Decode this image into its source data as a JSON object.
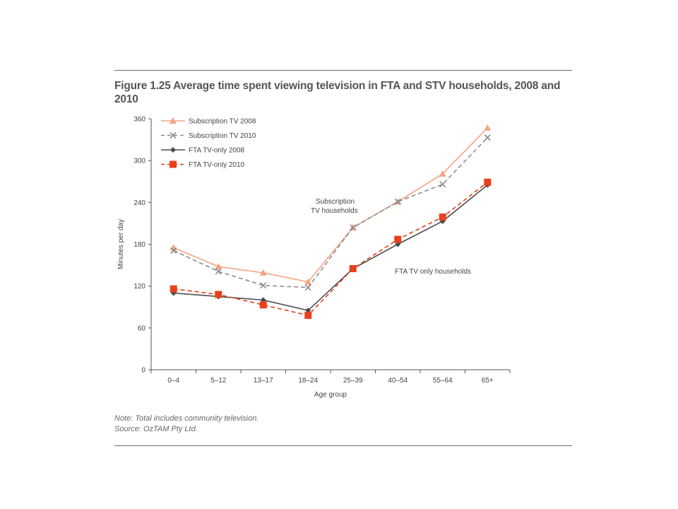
{
  "figure": {
    "title": "Figure 1.25 Average time spent viewing television in FTA and STV households, 2008 and 2010",
    "note": "Note: Total includes community television.",
    "source": "Source: OzTAM Pty Ltd."
  },
  "chart_data": {
    "type": "line",
    "title": "Figure 1.25 Average time spent viewing television in FTA and STV households, 2008 and 2010",
    "xlabel": "Age group",
    "ylabel": "Minutes per day",
    "ylim": [
      0,
      360
    ],
    "yticks": [
      0,
      60,
      120,
      180,
      240,
      300,
      360
    ],
    "grid": false,
    "legend_position": "top-left",
    "categories": [
      "0–4",
      "5–12",
      "13–17",
      "18–24",
      "25–39",
      "40–54",
      "55–64",
      "65+"
    ],
    "series": [
      {
        "name": "Subscription TV 2008",
        "color": "#f4a582",
        "marker": "triangle",
        "dash": "solid",
        "values": [
          175,
          148,
          139,
          126,
          204,
          241,
          281,
          347
        ]
      },
      {
        "name": "Subscription TV 2010",
        "color": "#8c8c8c",
        "marker": "x",
        "dash": "dashed",
        "values": [
          171,
          141,
          121,
          118,
          204,
          241,
          266,
          333
        ]
      },
      {
        "name": "FTA TV-only 2008",
        "color": "#4d4d4d",
        "marker": "diamond",
        "dash": "solid",
        "values": [
          110,
          105,
          100,
          85,
          145,
          180,
          213,
          265
        ]
      },
      {
        "name": "FTA TV-only 2010",
        "color": "#e8401c",
        "marker": "square",
        "dash": "dashed",
        "values": [
          116,
          108,
          93,
          78,
          145,
          187,
          219,
          269
        ]
      }
    ],
    "annotations": [
      {
        "line1": "Subscription",
        "line2": "TV households"
      },
      {
        "line1": "FTA TV only households",
        "line2": ""
      }
    ]
  }
}
